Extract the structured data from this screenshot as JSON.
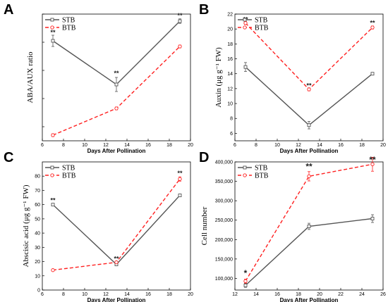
{
  "colors": {
    "stb": "#555555",
    "btb": "#ff2020"
  },
  "chart_data": [
    {
      "panel": "A",
      "type": "line",
      "ylabel": "ABA/AUX ratio",
      "xlabel": "Days After Pollination",
      "xlim": [
        6,
        20
      ],
      "xticks": [
        6,
        8,
        10,
        12,
        14,
        16,
        18,
        20
      ],
      "ylim": [
        0.5,
        5
      ],
      "yticks": [
        1,
        2,
        3,
        4,
        5
      ],
      "show_yticklabels": false,
      "legend": "top-left",
      "x": [
        7,
        13,
        19
      ],
      "series": [
        {
          "name": "STB",
          "values": [
            4.05,
            2.5,
            4.75
          ],
          "errors": [
            0.2,
            0.25,
            0.08
          ],
          "style": "solid"
        },
        {
          "name": "BTB",
          "values": [
            0.7,
            1.65,
            3.85
          ],
          "errors": [
            0.05,
            0.05,
            0.05
          ],
          "style": "dashed"
        }
      ],
      "annotations": [
        {
          "text": "**",
          "x": 7,
          "y": 4.35
        },
        {
          "text": "**",
          "x": 13,
          "y": 2.9
        },
        {
          "text": "**",
          "x": 19,
          "y": 4.95
        }
      ]
    },
    {
      "panel": "B",
      "type": "line",
      "ylabel": "Auxin (μg g⁻¹ FW)",
      "xlabel": "Days After Pollination",
      "xlim": [
        6,
        20
      ],
      "xticks": [
        6,
        8,
        10,
        12,
        14,
        16,
        18,
        20
      ],
      "ylim": [
        5,
        22
      ],
      "yticks": [
        6,
        8,
        10,
        12,
        14,
        16,
        18,
        20,
        22
      ],
      "show_yticklabels": true,
      "legend": "top-left",
      "x": [
        7,
        13,
        19
      ],
      "series": [
        {
          "name": "STB",
          "values": [
            14.9,
            7.1,
            14.0
          ],
          "errors": [
            0.6,
            0.5,
            0.1
          ],
          "style": "solid"
        },
        {
          "name": "BTB",
          "values": [
            20.8,
            11.9,
            20.2
          ],
          "errors": [
            0.2,
            0.2,
            0.2
          ],
          "style": "dashed"
        }
      ],
      "annotations": [
        {
          "text": "**",
          "x": 7,
          "y": 21.3
        },
        {
          "text": "**",
          "x": 13,
          "y": 12.4
        },
        {
          "text": "**",
          "x": 19,
          "y": 20.8
        }
      ]
    },
    {
      "panel": "C",
      "type": "line",
      "ylabel": "Abscisic acid (μg g⁻¹ FW)",
      "xlabel": "Days After Pollination",
      "xlim": [
        6,
        20
      ],
      "xticks": [
        6,
        8,
        10,
        12,
        14,
        16,
        18,
        20
      ],
      "ylim": [
        0,
        90
      ],
      "yticks": [
        0,
        10,
        20,
        30,
        40,
        50,
        60,
        70,
        80
      ],
      "show_yticklabels": true,
      "legend": "top-left",
      "x": [
        7,
        13,
        19
      ],
      "series": [
        {
          "name": "STB",
          "values": [
            60,
            18,
            66.5
          ],
          "errors": [
            0.8,
            0.8,
            0.8
          ],
          "style": "solid"
        },
        {
          "name": "BTB",
          "values": [
            14,
            19.5,
            78
          ],
          "errors": [
            0.5,
            0.5,
            1.5
          ],
          "style": "dashed"
        }
      ],
      "annotations": [
        {
          "text": "**",
          "x": 7,
          "y": 63
        },
        {
          "text": "**",
          "x": 13,
          "y": 22
        },
        {
          "text": "**",
          "x": 19,
          "y": 82
        }
      ]
    },
    {
      "panel": "D",
      "type": "line",
      "ylabel": "Cell number",
      "xlabel": "Days After Pollination",
      "xlim": [
        12,
        26
      ],
      "xticks": [
        12,
        14,
        16,
        18,
        20,
        22,
        24,
        26
      ],
      "ylim": [
        70000,
        400000
      ],
      "yticks": [
        100000,
        150000,
        200000,
        250000,
        300000,
        350000,
        400000
      ],
      "ytick_labels": [
        "100,000",
        "150,000",
        "200,000",
        "250,000",
        "300,000",
        "350,000",
        "400,000"
      ],
      "show_yticklabels": true,
      "legend": "top-left",
      "x": [
        13,
        19,
        25
      ],
      "series": [
        {
          "name": "STB",
          "values": [
            82000,
            234000,
            254000
          ],
          "errors": [
            5000,
            8000,
            10000
          ],
          "style": "solid"
        },
        {
          "name": "BTB",
          "values": [
            93000,
            363000,
            394000
          ],
          "errors": [
            5000,
            12000,
            18000
          ],
          "style": "dashed"
        }
      ],
      "annotations": [
        {
          "text": "*",
          "x": 13,
          "y": 112000
        },
        {
          "text": "**",
          "x": 19,
          "y": 386000
        },
        {
          "text": "**",
          "x": 25,
          "y": 420000
        }
      ]
    }
  ]
}
